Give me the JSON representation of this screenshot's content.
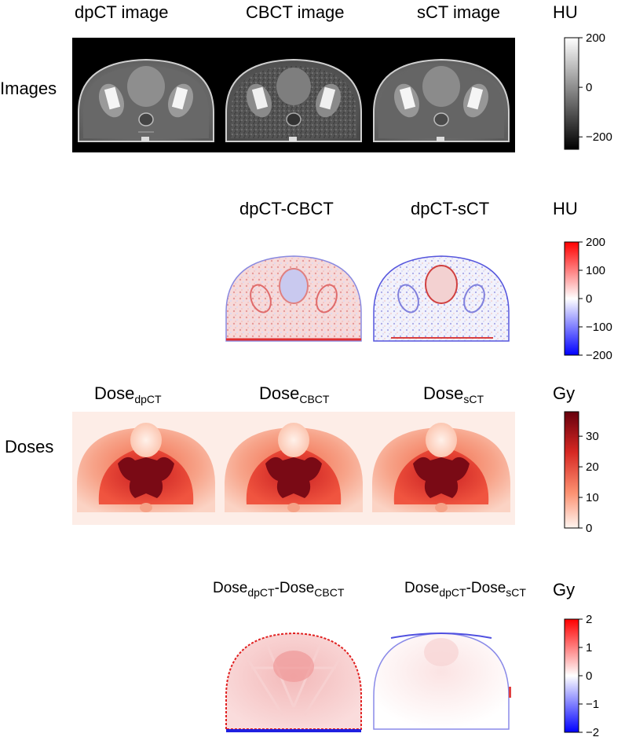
{
  "rows": {
    "images": "Images",
    "doses": "Doses"
  },
  "titles": {
    "dpct_image": "dpCT image",
    "cbct_image": "CBCT image",
    "sct_image": "sCT image",
    "diff_cbct": "dpCT-CBCT",
    "diff_sct": "dpCT-sCT",
    "dose_main": "Dose",
    "sub_dpct": "dpCT",
    "sub_cbct": "CBCT",
    "sub_sct": "sCT",
    "dash": "-"
  },
  "colorbars": [
    {
      "id": "cb1",
      "unit": "HU",
      "range": [
        -250,
        200
      ],
      "ticks": [
        "200",
        "0",
        "−200"
      ],
      "tick_values": [
        200,
        0,
        -200
      ],
      "map": "gray"
    },
    {
      "id": "cb2",
      "unit": "HU",
      "range": [
        -200,
        200
      ],
      "ticks": [
        "200",
        "100",
        "0",
        "−100",
        "−200"
      ],
      "tick_values": [
        200,
        100,
        0,
        -100,
        -200
      ],
      "map": "bwr"
    },
    {
      "id": "cb3",
      "unit": "Gy",
      "range": [
        0,
        38
      ],
      "ticks": [
        "30",
        "20",
        "10",
        "0"
      ],
      "tick_values": [
        30,
        20,
        10,
        0
      ],
      "map": "reds"
    },
    {
      "id": "cb4",
      "unit": "Gy",
      "range": [
        -2,
        2
      ],
      "ticks": [
        "2",
        "1",
        "0",
        "−1",
        "−2"
      ],
      "tick_values": [
        2,
        1,
        0,
        -1,
        -2
      ],
      "map": "bwr"
    }
  ],
  "colors": {
    "red": "#e8261c",
    "blue": "#1a1aff",
    "dark_red": "#6b0010",
    "dose_bg": "#fdede7"
  }
}
